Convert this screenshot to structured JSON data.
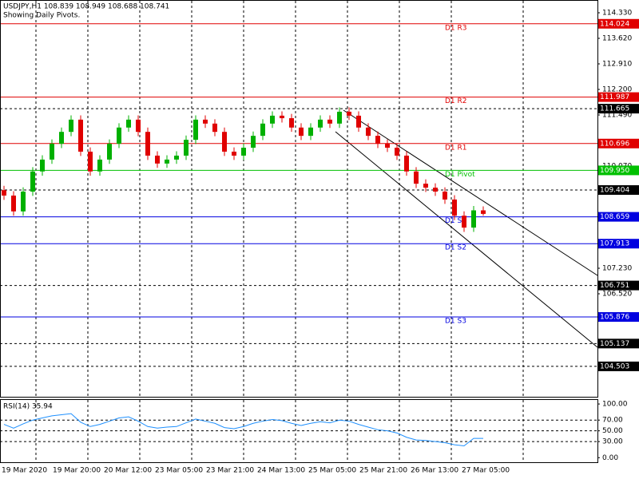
{
  "chart_data": [
    {
      "type": "candlestick",
      "title": "USDJPY,H1  108.839 108.949 108.688 108.741",
      "subtitle": "Showing Daily Pivots.",
      "up_color": "#00b000",
      "down_color": "#e00000",
      "open": [
        109.4,
        109.25,
        108.81,
        109.36,
        109.92,
        110.25,
        110.69,
        111.02,
        111.36,
        110.47,
        109.92,
        110.25,
        110.69,
        111.14,
        111.36,
        111.02,
        110.36,
        110.14,
        110.25,
        110.36,
        110.8,
        111.36,
        111.25,
        111.02,
        110.47,
        110.36,
        110.58,
        110.91,
        111.25,
        111.47,
        111.4,
        111.14,
        110.91,
        111.14,
        111.36,
        111.25,
        111.58,
        111.47,
        111.14,
        110.91,
        110.69,
        110.58,
        110.36,
        109.92,
        109.58,
        109.47,
        109.36,
        109.14,
        108.69,
        108.36,
        108.839
      ],
      "high": [
        109.52,
        109.37,
        109.48,
        110.04,
        110.37,
        110.81,
        111.14,
        111.48,
        111.48,
        110.59,
        110.37,
        110.81,
        111.26,
        111.48,
        111.48,
        111.14,
        110.48,
        110.37,
        110.48,
        110.92,
        111.48,
        111.48,
        111.37,
        111.14,
        110.59,
        110.7,
        111.03,
        111.37,
        111.59,
        111.59,
        111.52,
        111.26,
        111.26,
        111.48,
        111.48,
        111.7,
        111.7,
        111.59,
        111.26,
        111.03,
        110.81,
        110.7,
        110.48,
        110.04,
        109.7,
        109.59,
        109.48,
        109.26,
        108.81,
        108.96,
        108.949
      ],
      "low": [
        109.13,
        108.69,
        108.69,
        109.24,
        109.8,
        110.13,
        110.57,
        110.9,
        110.35,
        109.8,
        109.8,
        110.13,
        110.57,
        111.02,
        110.9,
        110.24,
        110.02,
        110.02,
        110.13,
        110.24,
        110.68,
        111.13,
        110.9,
        110.35,
        110.24,
        110.24,
        110.46,
        110.79,
        111.13,
        111.28,
        111.02,
        110.79,
        110.79,
        111.02,
        111.13,
        111.13,
        111.35,
        111.02,
        110.79,
        110.57,
        110.46,
        110.24,
        109.8,
        109.46,
        109.35,
        109.24,
        109.02,
        108.57,
        108.24,
        108.24,
        108.688
      ],
      "close": [
        109.25,
        108.81,
        109.36,
        109.92,
        110.25,
        110.69,
        111.02,
        111.36,
        110.47,
        109.92,
        110.25,
        110.69,
        111.14,
        111.36,
        111.02,
        110.36,
        110.14,
        110.25,
        110.36,
        110.8,
        111.36,
        111.25,
        111.02,
        110.47,
        110.36,
        110.58,
        110.91,
        111.25,
        111.47,
        111.4,
        111.14,
        110.91,
        111.14,
        111.36,
        111.25,
        111.58,
        111.47,
        111.14,
        110.91,
        110.69,
        110.58,
        110.36,
        109.92,
        109.58,
        109.47,
        109.36,
        109.14,
        108.69,
        108.36,
        108.839,
        108.741
      ],
      "ylim": [
        103.658,
        114.685
      ],
      "yticks": [
        {
          "value": 114.33,
          "label": "114.330"
        },
        {
          "value": 113.62,
          "label": "113.620"
        },
        {
          "value": 112.91,
          "label": "112.910"
        },
        {
          "value": 112.2,
          "label": "112.200"
        },
        {
          "value": 111.49,
          "label": "111.490"
        },
        {
          "value": 110.07,
          "label": "110.070"
        },
        {
          "value": 107.23,
          "label": "107.230"
        },
        {
          "value": 106.52,
          "label": "106.520"
        }
      ],
      "levels": [
        {
          "name": "D1 R3",
          "value": 114.024,
          "label": "114.024",
          "color": "#e00000"
        },
        {
          "name": "D1 R2",
          "value": 111.987,
          "label": "111.987",
          "color": "#e00000"
        },
        {
          "name": "D1 R1",
          "value": 110.696,
          "label": "110.696",
          "color": "#e00000"
        },
        {
          "name": "D1 Pivot",
          "value": 109.95,
          "label": "109.950",
          "color": "#00c000"
        },
        {
          "name": "D1 S1",
          "value": 108.659,
          "label": "108.659",
          "color": "#0000e0"
        },
        {
          "name": "D1 S2",
          "value": 107.913,
          "label": "107.913",
          "color": "#0000e0"
        },
        {
          "name": "D1 S3",
          "value": 105.876,
          "label": "105.876",
          "color": "#0000e0"
        }
      ],
      "lines": [
        {
          "value": 111.665,
          "label": "111.665"
        },
        {
          "value": 109.404,
          "label": "109.404"
        },
        {
          "value": 106.751,
          "label": "106.751"
        },
        {
          "value": 105.137,
          "label": "105.137"
        },
        {
          "value": 104.503,
          "label": "104.503"
        }
      ],
      "x_labels": [
        "19 Mar 2020",
        "19 Mar 20:00",
        "20 Mar 12:00",
        "23 Mar 05:00",
        "23 Mar 21:00",
        "24 Mar 13:00",
        "25 Mar 05:00",
        "25 Mar 21:00",
        "26 Mar 13:00",
        "27 Mar 05:00"
      ]
    },
    {
      "type": "line",
      "title": "RSI(14) 35.94",
      "color": "#1e90ff",
      "values": [
        62,
        55,
        63,
        70,
        74,
        78,
        80,
        82,
        66,
        58,
        62,
        68,
        74,
        76,
        68,
        58,
        55,
        57,
        58,
        65,
        72,
        68,
        64,
        56,
        54,
        58,
        64,
        68,
        71,
        69,
        64,
        60,
        64,
        67,
        65,
        70,
        68,
        62,
        57,
        52,
        50,
        46,
        38,
        33,
        32,
        30,
        28,
        24,
        22,
        36,
        35.94
      ],
      "ylim": [
        -10,
        109
      ],
      "yticks": [
        {
          "value": 100,
          "label": "100.00"
        },
        {
          "value": 70,
          "label": "70.00"
        },
        {
          "value": 50,
          "label": "50.00"
        },
        {
          "value": 30,
          "label": "30.00"
        },
        {
          "value": 0,
          "label": "0.00"
        }
      ]
    }
  ]
}
